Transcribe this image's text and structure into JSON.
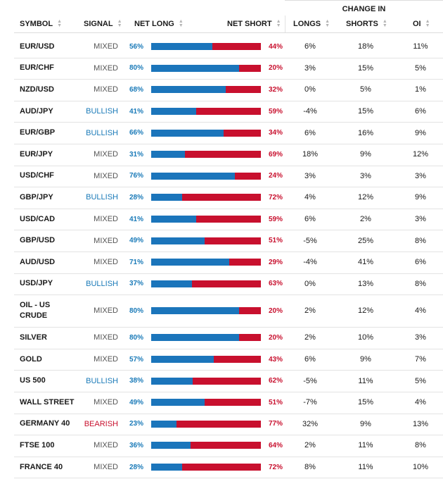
{
  "header": {
    "change_group": "CHANGE IN",
    "symbol": "SYMBOL",
    "signal": "SIGNAL",
    "net_long": "NET LONG",
    "net_short": "NET SHORT",
    "longs": "LONGS",
    "shorts": "SHORTS",
    "oi": "OI"
  },
  "colors": {
    "long": "#1b75bb",
    "short": "#c8102e",
    "bullish": "#1a7ab8",
    "bearish": "#c8102e",
    "mixed": "#555555"
  },
  "rows": [
    {
      "symbol": "EUR/USD",
      "signal": "MIXED",
      "net_long": "56%",
      "net_short": "44%",
      "long_fraction": 0.56,
      "longs": "6%",
      "shorts": "18%",
      "oi": "11%"
    },
    {
      "symbol": "EUR/CHF",
      "signal": "MIXED",
      "net_long": "80%",
      "net_short": "20%",
      "long_fraction": 0.8,
      "longs": "3%",
      "shorts": "15%",
      "oi": "5%"
    },
    {
      "symbol": "NZD/USD",
      "signal": "MIXED",
      "net_long": "68%",
      "net_short": "32%",
      "long_fraction": 0.68,
      "longs": "0%",
      "shorts": "5%",
      "oi": "1%"
    },
    {
      "symbol": "AUD/JPY",
      "signal": "BULLISH",
      "net_long": "41%",
      "net_short": "59%",
      "long_fraction": 0.41,
      "longs": "-4%",
      "shorts": "15%",
      "oi": "6%"
    },
    {
      "symbol": "EUR/GBP",
      "signal": "BULLISH",
      "net_long": "66%",
      "net_short": "34%",
      "long_fraction": 0.66,
      "longs": "6%",
      "shorts": "16%",
      "oi": "9%"
    },
    {
      "symbol": "EUR/JPY",
      "signal": "MIXED",
      "net_long": "31%",
      "net_short": "69%",
      "long_fraction": 0.31,
      "longs": "18%",
      "shorts": "9%",
      "oi": "12%"
    },
    {
      "symbol": "USD/CHF",
      "signal": "MIXED",
      "net_long": "76%",
      "net_short": "24%",
      "long_fraction": 0.76,
      "longs": "3%",
      "shorts": "3%",
      "oi": "3%"
    },
    {
      "symbol": "GBP/JPY",
      "signal": "BULLISH",
      "net_long": "28%",
      "net_short": "72%",
      "long_fraction": 0.28,
      "longs": "4%",
      "shorts": "12%",
      "oi": "9%"
    },
    {
      "symbol": "USD/CAD",
      "signal": "MIXED",
      "net_long": "41%",
      "net_short": "59%",
      "long_fraction": 0.41,
      "longs": "6%",
      "shorts": "2%",
      "oi": "3%"
    },
    {
      "symbol": "GBP/USD",
      "signal": "MIXED",
      "net_long": "49%",
      "net_short": "51%",
      "long_fraction": 0.49,
      "longs": "-5%",
      "shorts": "25%",
      "oi": "8%"
    },
    {
      "symbol": "AUD/USD",
      "signal": "MIXED",
      "net_long": "71%",
      "net_short": "29%",
      "long_fraction": 0.71,
      "longs": "-4%",
      "shorts": "41%",
      "oi": "6%"
    },
    {
      "symbol": "USD/JPY",
      "signal": "BULLISH",
      "net_long": "37%",
      "net_short": "63%",
      "long_fraction": 0.37,
      "longs": "0%",
      "shorts": "13%",
      "oi": "8%"
    },
    {
      "symbol": "OIL - US CRUDE",
      "signal": "MIXED",
      "net_long": "80%",
      "net_short": "20%",
      "long_fraction": 0.8,
      "longs": "2%",
      "shorts": "12%",
      "oi": "4%"
    },
    {
      "symbol": "SILVER",
      "signal": "MIXED",
      "net_long": "80%",
      "net_short": "20%",
      "long_fraction": 0.8,
      "longs": "2%",
      "shorts": "10%",
      "oi": "3%"
    },
    {
      "symbol": "GOLD",
      "signal": "MIXED",
      "net_long": "57%",
      "net_short": "43%",
      "long_fraction": 0.57,
      "longs": "6%",
      "shorts": "9%",
      "oi": "7%"
    },
    {
      "symbol": "US 500",
      "signal": "BULLISH",
      "net_long": "38%",
      "net_short": "62%",
      "long_fraction": 0.38,
      "longs": "-5%",
      "shorts": "11%",
      "oi": "5%"
    },
    {
      "symbol": "WALL STREET",
      "signal": "MIXED",
      "net_long": "49%",
      "net_short": "51%",
      "long_fraction": 0.49,
      "longs": "-7%",
      "shorts": "15%",
      "oi": "4%"
    },
    {
      "symbol": "GERMANY 40",
      "signal": "BEARISH",
      "net_long": "23%",
      "net_short": "77%",
      "long_fraction": 0.23,
      "longs": "32%",
      "shorts": "9%",
      "oi": "13%"
    },
    {
      "symbol": "FTSE 100",
      "signal": "MIXED",
      "net_long": "36%",
      "net_short": "64%",
      "long_fraction": 0.36,
      "longs": "2%",
      "shorts": "11%",
      "oi": "8%"
    },
    {
      "symbol": "FRANCE 40",
      "signal": "MIXED",
      "net_long": "28%",
      "net_short": "72%",
      "long_fraction": 0.28,
      "longs": "8%",
      "shorts": "11%",
      "oi": "10%"
    }
  ]
}
